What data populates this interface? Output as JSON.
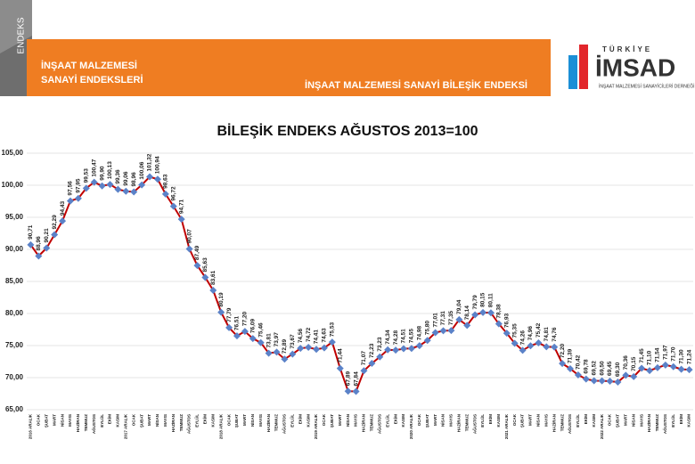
{
  "header": {
    "logo_word": "ENDEKS",
    "left_title_1": "İNŞAAT MALZEMESİ",
    "left_title_2": "SANAYİ ENDEKSLERİ",
    "banner_title": "İNŞAAT MALZEMESİ SANAYİ BİLEŞİK ENDEKSİ",
    "brand_top": "TÜRKİYE",
    "brand": "İMSAD",
    "brand_sub": "İNŞAAT MALZEMESİ SANAYİCİLERİ DERNEĞİ"
  },
  "chart_data": {
    "type": "line",
    "title": "BİLEŞİK ENDEKS AĞUSTOS 2013=100",
    "categories": [
      "2016 ARALIK",
      "OCAK",
      "ŞUBAT",
      "MART",
      "NİSAN",
      "MAYIS",
      "HAZİRAN",
      "TEMMUZ",
      "AĞUSTOS",
      "EYLÜL",
      "EKİM",
      "KASIM",
      "2017 ARALIK",
      "OCAK",
      "ŞUBAT",
      "MART",
      "NİSAN",
      "MAYIS",
      "HAZİRAN",
      "TEMMUZ",
      "AĞUSTOS",
      "EYLÜL",
      "EKİM",
      "KASIM",
      "2018 ARALIK",
      "OCAK",
      "ŞUBAT",
      "MART",
      "NİSAN",
      "MAYIS",
      "HAZİRAN",
      "TEMMUZ",
      "AĞUSTOS",
      "EYLÜL",
      "EKİM",
      "KASIM",
      "2019 ARALIK",
      "OCAK",
      "ŞUBAT",
      "MART",
      "NİSAN",
      "MAYIS",
      "HAZİRAN",
      "TEMMUZ",
      "AĞUSTOS",
      "EYLÜL",
      "EKİM",
      "KASIM",
      "2020 ARALIK",
      "OCAK",
      "ŞUBAT",
      "MART",
      "NİSAN",
      "MAYIS",
      "HAZİRAN",
      "TEMMUZ",
      "AĞUSTOS",
      "EYLÜL",
      "EKİM",
      "KASIM",
      "2021 ARALIK",
      "OCAK",
      "ŞUBAT",
      "MART",
      "NİSAN",
      "MAYIS",
      "HAZİRAN",
      "TEMMUZ",
      "AĞUSTOS",
      "EYLÜL",
      "EKİM",
      "KASIM",
      "2022 ARALIK",
      "OCAK",
      "ŞUBAT",
      "MART",
      "NİSAN",
      "MAYIS",
      "HAZİRAN",
      "TEMMUZ",
      "AĞUSTOS",
      "EYLÜL",
      "EKİM",
      "KASIM"
    ],
    "values": [
      90.71,
      88.96,
      90.21,
      92.29,
      94.43,
      97.56,
      97.95,
      99.53,
      100.47,
      99.9,
      100.13,
      99.36,
      99.06,
      98.96,
      100.06,
      101.32,
      100.94,
      98.63,
      96.72,
      94.71,
      90.07,
      87.49,
      85.63,
      83.61,
      80.19,
      77.79,
      76.51,
      77.2,
      76.09,
      75.46,
      73.81,
      73.97,
      72.89,
      73.67,
      74.56,
      74.72,
      74.41,
      74.63,
      75.53,
      71.44,
      67.89,
      67.84,
      71.07,
      72.23,
      73.23,
      74.34,
      74.28,
      74.51,
      74.55,
      74.98,
      75.8,
      77.01,
      77.31,
      77.35,
      79.04,
      78.14,
      79.79,
      80.15,
      80.11,
      78.38,
      76.93,
      75.35,
      74.26,
      74.96,
      75.42,
      74.81,
      74.76,
      72.2,
      71.39,
      70.42,
      69.78,
      69.52,
      69.5,
      69.45,
      69.3,
      70.36,
      70.15,
      71.45,
      71.1,
      71.54,
      71.97,
      71.7,
      71.3,
      71.24
    ],
    "value_labels": [
      "90,71",
      "88,96",
      "90,21",
      "92,29",
      "94,43",
      "97,56",
      "97,95",
      "99,53",
      "100,47",
      "99,90",
      "100,13",
      "99,36",
      "99,06",
      "98,96",
      "100,06",
      "101,32",
      "100,94",
      "98,63",
      "96,72",
      "94,71",
      "90,07",
      "87,49",
      "85,63",
      "83,61",
      "80,19",
      "77,79",
      "76,51",
      "77,20",
      "76,09",
      "75,46",
      "73,81",
      "73,97",
      "72,89",
      "73,67",
      "74,56",
      "74,72",
      "74,41",
      "74,63",
      "75,53",
      "71,44",
      "67,89",
      "67,84",
      "71,07",
      "72,23",
      "73,23",
      "74,34",
      "74,28",
      "74,51",
      "74,55",
      "74,98",
      "75,80",
      "77,01",
      "77,31",
      "77,35",
      "79,04",
      "78,14",
      "79,79",
      "80,15",
      "80,11",
      "78,38",
      "76,93",
      "75,35",
      "74,26",
      "74,96",
      "75,42",
      "74,81",
      "74,76",
      "72,20",
      "71,39",
      "70,42",
      "69,78",
      "69,52",
      "69,50",
      "69,45",
      "69,30",
      "70,36",
      "70,15",
      "71,45",
      "71,10",
      "71,54",
      "71,97",
      "71,70",
      "71,30",
      "71,24"
    ],
    "color": "#c00000",
    "marker_color": "#5b82c8",
    "ylim": [
      65,
      105
    ],
    "yticks": [
      {
        "value": 65,
        "label": "65,00"
      },
      {
        "value": 70,
        "label": "70,00"
      },
      {
        "value": 75,
        "label": "75,00"
      },
      {
        "value": 80,
        "label": "80,00"
      },
      {
        "value": 85,
        "label": "85,00"
      },
      {
        "value": 90,
        "label": "90,00"
      },
      {
        "value": 95,
        "label": "95,00"
      },
      {
        "value": 100,
        "label": "100,00"
      },
      {
        "value": 105,
        "label": "105,00"
      }
    ],
    "grid": true
  }
}
